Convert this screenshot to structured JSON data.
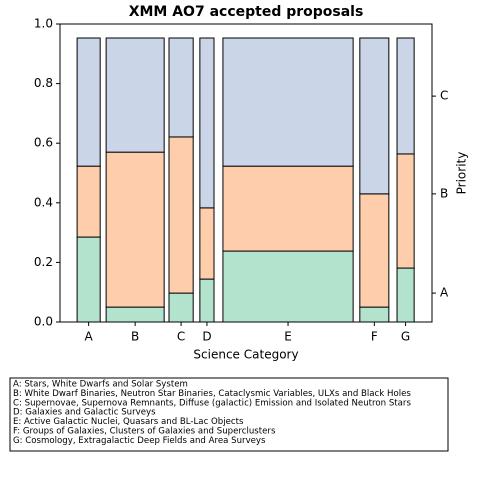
{
  "chart_data": {
    "type": "mosaic",
    "title": "XMM AO7 accepted proposals",
    "xlabel": "Science Category",
    "y2label": "Priority",
    "categories": [
      "A",
      "B",
      "C",
      "D",
      "E",
      "F",
      "G"
    ],
    "x_ranges": [
      [
        0.046,
        0.108
      ],
      [
        0.124,
        0.28
      ],
      [
        0.293,
        0.358
      ],
      [
        0.376,
        0.414
      ],
      [
        0.438,
        0.788
      ],
      [
        0.806,
        0.884
      ],
      [
        0.906,
        0.952
      ]
    ],
    "xlim": [
      0,
      1
    ],
    "series": [
      {
        "name": "A",
        "color": "#b3e2cd",
        "values": [
          0.285,
          0.05,
          0.097,
          0.144,
          0.238,
          0.05,
          0.181
        ]
      },
      {
        "name": "B",
        "color": "#fdcdac",
        "values": [
          0.238,
          0.52,
          0.524,
          0.239,
          0.285,
          0.38,
          0.383
        ]
      },
      {
        "name": "C",
        "color": "#cbd5e8",
        "values": [
          0.43,
          0.383,
          0.332,
          0.57,
          0.43,
          0.523,
          0.389
        ]
      }
    ],
    "ylim": [
      0,
      1
    ],
    "yticks": [
      {
        "value": 0,
        "label": "0.0"
      },
      {
        "value": 0.2,
        "label": "0.2"
      },
      {
        "value": 0.4,
        "label": "0.4"
      },
      {
        "value": 0.6,
        "label": "0.6"
      },
      {
        "value": 0.8,
        "label": "0.8"
      },
      {
        "value": 1,
        "label": "1.0"
      }
    ],
    "y2lim": [
      0,
      1
    ],
    "y2ticks": [
      {
        "value": 0.097,
        "label": "A"
      },
      {
        "value": 0.43,
        "label": "B"
      },
      {
        "value": 0.758,
        "label": "C"
      }
    ],
    "legend_text": [
      "A: Stars, White Dwarfs and Solar System",
      "B: White Dwarf Binaries, Neutron Star Binaries, Cataclysmic Variables, ULXs and Black Holes",
      "C: Supernovae, Supernova Remnants, Diffuse (galactic) Emission and Isolated Neutron Stars",
      "D: Galaxies and Galactic Surveys",
      "E: Active Galactic Nuclei, Quasars and BL-Lac Objects",
      "F: Groups of Galaxies, Clusters of Galaxies and Superclusters",
      "G: Cosmology, Extragalactic Deep Fields and Area Surveys"
    ]
  }
}
